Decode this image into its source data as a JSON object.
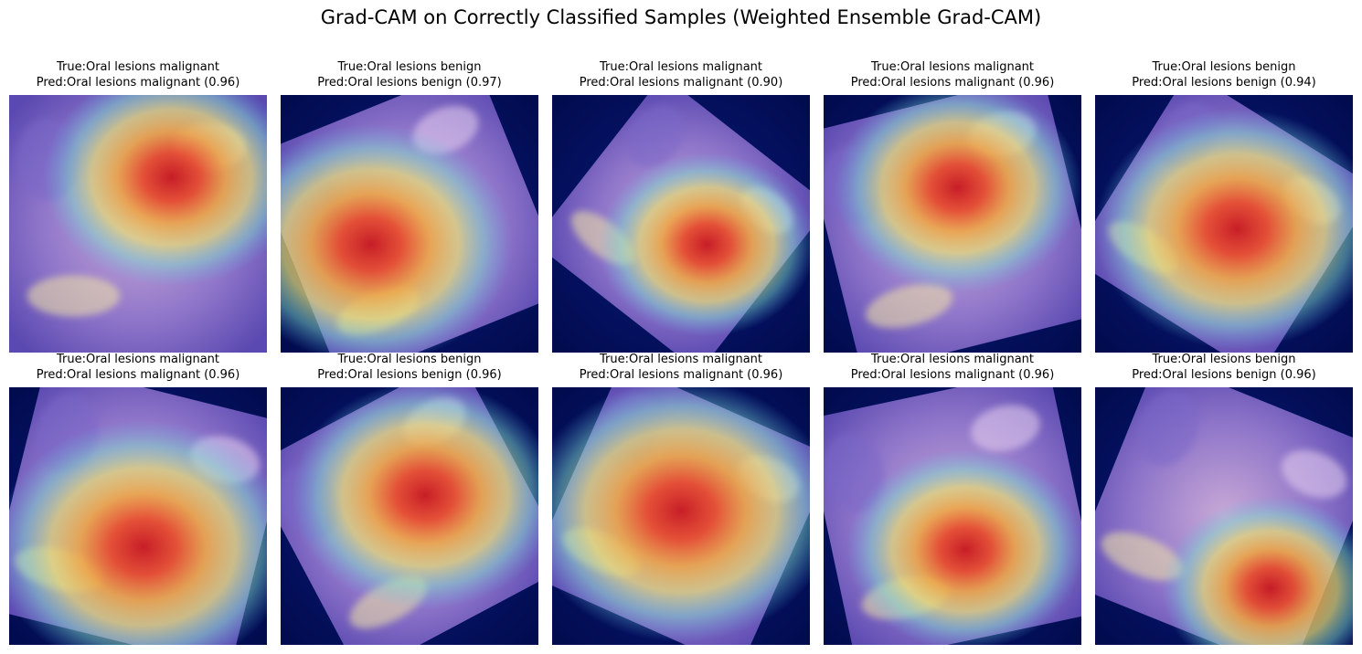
{
  "figure": {
    "title": "Grad-CAM on Correctly Classified Samples (Weighted Ensemble Grad-CAM)"
  },
  "panels": [
    {
      "true_text": "True:Oral lesions malignant",
      "pred_text": "Pred:Oral lesions malignant (0.96)"
    },
    {
      "true_text": "True:Oral lesions benign",
      "pred_text": "Pred:Oral lesions benign (0.97)"
    },
    {
      "true_text": "True:Oral lesions malignant",
      "pred_text": "Pred:Oral lesions malignant (0.90)"
    },
    {
      "true_text": "True:Oral lesions malignant",
      "pred_text": "Pred:Oral lesions malignant (0.96)"
    },
    {
      "true_text": "True:Oral lesions benign",
      "pred_text": "Pred:Oral lesions benign (0.94)"
    },
    {
      "true_text": "True:Oral lesions malignant",
      "pred_text": "Pred:Oral lesions malignant (0.96)"
    },
    {
      "true_text": "True:Oral lesions benign",
      "pred_text": "Pred:Oral lesions benign (0.96)"
    },
    {
      "true_text": "True:Oral lesions malignant",
      "pred_text": "Pred:Oral lesions malignant (0.96)"
    },
    {
      "true_text": "True:Oral lesions malignant",
      "pred_text": "Pred:Oral lesions malignant (0.96)"
    },
    {
      "true_text": "True:Oral lesions benign",
      "pred_text": "Pred:Oral lesions benign (0.96)"
    }
  ]
}
